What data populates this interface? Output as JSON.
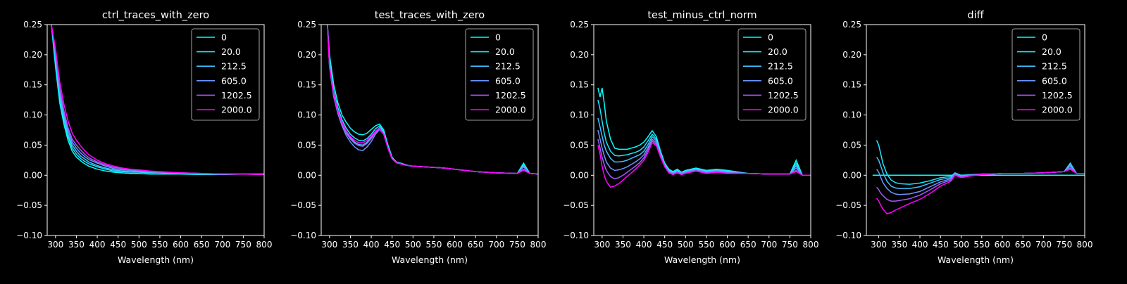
{
  "figure": {
    "background": "#000000",
    "foreground": "#ffffff"
  },
  "legend": {
    "entries": [
      "0",
      "20.0",
      "212.5",
      "605.0",
      "1202.5",
      "2000.0"
    ],
    "colors": [
      "#00ffff",
      "#1ae5ff",
      "#3fc0ff",
      "#6a95ff",
      "#a55aff",
      "#ff00ff"
    ],
    "placement": "top-right"
  },
  "chart_data": [
    {
      "type": "line",
      "title": "ctrl_traces_with_zero",
      "xlabel": "Wavelength (nm)",
      "ylabel": "",
      "xlim": [
        280,
        800
      ],
      "ylim": [
        -0.1,
        0.25
      ],
      "xticks": [
        "300",
        "350",
        "400",
        "450",
        "500",
        "550",
        "600",
        "650",
        "700",
        "750",
        "800"
      ],
      "yticks": [
        "−0.10",
        "−0.05",
        "0.00",
        "0.05",
        "0.10",
        "0.15",
        "0.20",
        "0.25"
      ],
      "grid": false,
      "legend": "top-right",
      "x": [
        290,
        300,
        310,
        320,
        330,
        340,
        350,
        360,
        370,
        380,
        400,
        420,
        440,
        460,
        480,
        500,
        525,
        550,
        575,
        600,
        650,
        700,
        750,
        800
      ],
      "series": [
        {
          "name": "0",
          "values": [
            0.25,
            0.18,
            0.12,
            0.085,
            0.058,
            0.04,
            0.03,
            0.024,
            0.019,
            0.015,
            0.01,
            0.007,
            0.005,
            0.004,
            0.003,
            0.003,
            0.002,
            0.002,
            0.002,
            0.002,
            0.001,
            0.001,
            0.002,
            0.002
          ]
        },
        {
          "name": "20.0",
          "values": [
            0.25,
            0.19,
            0.13,
            0.092,
            0.064,
            0.045,
            0.035,
            0.028,
            0.023,
            0.019,
            0.014,
            0.01,
            0.007,
            0.006,
            0.005,
            0.005,
            0.004,
            0.004,
            0.003,
            0.003,
            0.002,
            0.002,
            0.002,
            0.002
          ]
        },
        {
          "name": "212.5",
          "values": [
            0.25,
            0.195,
            0.135,
            0.097,
            0.068,
            0.05,
            0.04,
            0.032,
            0.027,
            0.022,
            0.016,
            0.012,
            0.009,
            0.007,
            0.006,
            0.006,
            0.005,
            0.004,
            0.004,
            0.003,
            0.002,
            0.002,
            0.002,
            0.002
          ]
        },
        {
          "name": "605.0",
          "values": [
            0.25,
            0.2,
            0.14,
            0.102,
            0.074,
            0.055,
            0.045,
            0.037,
            0.031,
            0.026,
            0.02,
            0.015,
            0.011,
            0.009,
            0.008,
            0.007,
            0.006,
            0.005,
            0.004,
            0.004,
            0.003,
            0.002,
            0.002,
            0.002
          ]
        },
        {
          "name": "1202.5",
          "values": [
            0.25,
            0.205,
            0.145,
            0.107,
            0.079,
            0.06,
            0.05,
            0.042,
            0.035,
            0.029,
            0.022,
            0.017,
            0.013,
            0.011,
            0.009,
            0.008,
            0.006,
            0.005,
            0.004,
            0.004,
            0.003,
            0.002,
            0.002,
            0.001
          ]
        },
        {
          "name": "2000.0",
          "values": [
            0.25,
            0.21,
            0.155,
            0.118,
            0.09,
            0.07,
            0.058,
            0.049,
            0.041,
            0.034,
            0.025,
            0.019,
            0.015,
            0.012,
            0.01,
            0.009,
            0.007,
            0.006,
            0.005,
            0.004,
            0.003,
            0.002,
            0.002,
            0.001
          ]
        }
      ]
    },
    {
      "type": "line",
      "title": "test_traces_with_zero",
      "xlabel": "Wavelength (nm)",
      "ylabel": "",
      "xlim": [
        280,
        800
      ],
      "ylim": [
        -0.1,
        0.25
      ],
      "xticks": [
        "300",
        "350",
        "400",
        "450",
        "500",
        "550",
        "600",
        "650",
        "700",
        "750",
        "800"
      ],
      "yticks": [
        "−0.10",
        "−0.05",
        "0.00",
        "0.05",
        "0.10",
        "0.15",
        "0.20",
        "0.25"
      ],
      "grid": false,
      "legend": "top-right",
      "x": [
        295,
        300,
        310,
        320,
        330,
        340,
        350,
        360,
        370,
        380,
        390,
        400,
        410,
        420,
        430,
        440,
        450,
        460,
        470,
        480,
        490,
        500,
        525,
        550,
        575,
        600,
        650,
        700,
        750,
        765,
        780,
        800
      ],
      "series": [
        {
          "name": "0",
          "values": [
            0.25,
            0.2,
            0.15,
            0.12,
            0.1,
            0.088,
            0.078,
            0.072,
            0.068,
            0.067,
            0.07,
            0.076,
            0.082,
            0.085,
            0.075,
            0.05,
            0.03,
            0.022,
            0.02,
            0.018,
            0.016,
            0.015,
            0.014,
            0.013,
            0.012,
            0.01,
            0.006,
            0.004,
            0.003,
            0.02,
            0.003,
            0.002
          ]
        },
        {
          "name": "20.0",
          "values": [
            0.25,
            0.19,
            0.14,
            0.112,
            0.092,
            0.078,
            0.068,
            0.062,
            0.058,
            0.057,
            0.061,
            0.068,
            0.077,
            0.082,
            0.072,
            0.047,
            0.029,
            0.022,
            0.02,
            0.018,
            0.016,
            0.015,
            0.014,
            0.013,
            0.012,
            0.01,
            0.006,
            0.004,
            0.003,
            0.018,
            0.003,
            0.002
          ]
        },
        {
          "name": "212.5",
          "values": [
            0.25,
            0.185,
            0.135,
            0.107,
            0.087,
            0.072,
            0.062,
            0.055,
            0.051,
            0.05,
            0.055,
            0.063,
            0.073,
            0.079,
            0.07,
            0.046,
            0.028,
            0.021,
            0.019,
            0.017,
            0.016,
            0.015,
            0.014,
            0.013,
            0.012,
            0.01,
            0.006,
            0.004,
            0.003,
            0.016,
            0.003,
            0.002
          ]
        },
        {
          "name": "605.0",
          "values": [
            0.25,
            0.18,
            0.13,
            0.102,
            0.082,
            0.066,
            0.055,
            0.047,
            0.042,
            0.041,
            0.047,
            0.056,
            0.068,
            0.076,
            0.068,
            0.045,
            0.027,
            0.021,
            0.019,
            0.017,
            0.016,
            0.015,
            0.014,
            0.013,
            0.012,
            0.01,
            0.006,
            0.004,
            0.003,
            0.014,
            0.003,
            0.002
          ]
        },
        {
          "name": "1202.5",
          "values": [
            0.25,
            0.18,
            0.13,
            0.104,
            0.085,
            0.07,
            0.06,
            0.053,
            0.049,
            0.048,
            0.053,
            0.061,
            0.071,
            0.077,
            0.068,
            0.045,
            0.027,
            0.021,
            0.019,
            0.017,
            0.016,
            0.015,
            0.014,
            0.013,
            0.012,
            0.01,
            0.006,
            0.004,
            0.003,
            0.01,
            0.003,
            0.002
          ]
        },
        {
          "name": "2000.0",
          "values": [
            0.25,
            0.18,
            0.135,
            0.107,
            0.088,
            0.074,
            0.064,
            0.058,
            0.054,
            0.054,
            0.058,
            0.065,
            0.073,
            0.078,
            0.068,
            0.045,
            0.027,
            0.021,
            0.019,
            0.017,
            0.016,
            0.015,
            0.014,
            0.013,
            0.012,
            0.01,
            0.006,
            0.004,
            0.003,
            0.008,
            0.003,
            0.002
          ]
        }
      ]
    },
    {
      "type": "line",
      "title": "test_minus_ctrl_norm",
      "xlabel": "Wavelength (nm)",
      "ylabel": "",
      "xlim": [
        280,
        800
      ],
      "ylim": [
        -0.1,
        0.25
      ],
      "xticks": [
        "300",
        "350",
        "400",
        "450",
        "500",
        "550",
        "600",
        "650",
        "700",
        "750",
        "800"
      ],
      "yticks": [
        "−0.10",
        "−0.05",
        "0.00",
        "0.05",
        "0.10",
        "0.15",
        "0.20",
        "0.25"
      ],
      "grid": false,
      "legend": "top-right",
      "x": [
        290,
        295,
        300,
        305,
        310,
        320,
        330,
        340,
        350,
        360,
        370,
        380,
        390,
        400,
        410,
        420,
        430,
        440,
        450,
        460,
        470,
        480,
        490,
        500,
        525,
        550,
        575,
        600,
        650,
        700,
        750,
        765,
        780,
        800
      ],
      "series": [
        {
          "name": "0",
          "values": [
            0.145,
            0.13,
            0.145,
            0.12,
            0.09,
            0.06,
            0.045,
            0.043,
            0.043,
            0.043,
            0.045,
            0.047,
            0.05,
            0.055,
            0.064,
            0.074,
            0.064,
            0.04,
            0.02,
            0.01,
            0.006,
            0.01,
            0.005,
            0.008,
            0.012,
            0.008,
            0.01,
            0.008,
            0.003,
            0.002,
            0.002,
            0.025,
            0.0,
            0.0
          ]
        },
        {
          "name": "20.0",
          "values": [
            0.125,
            0.11,
            0.09,
            0.07,
            0.055,
            0.04,
            0.033,
            0.032,
            0.033,
            0.034,
            0.036,
            0.038,
            0.041,
            0.047,
            0.057,
            0.068,
            0.06,
            0.038,
            0.018,
            0.008,
            0.005,
            0.008,
            0.004,
            0.007,
            0.011,
            0.007,
            0.009,
            0.007,
            0.003,
            0.002,
            0.002,
            0.02,
            0.0,
            0.0
          ]
        },
        {
          "name": "212.5",
          "values": [
            0.095,
            0.08,
            0.065,
            0.05,
            0.04,
            0.028,
            0.022,
            0.022,
            0.023,
            0.025,
            0.028,
            0.031,
            0.034,
            0.04,
            0.051,
            0.064,
            0.057,
            0.036,
            0.017,
            0.007,
            0.004,
            0.007,
            0.004,
            0.006,
            0.01,
            0.006,
            0.008,
            0.006,
            0.003,
            0.002,
            0.002,
            0.016,
            0.0,
            0.0
          ]
        },
        {
          "name": "605.0",
          "values": [
            0.075,
            0.06,
            0.045,
            0.033,
            0.022,
            0.012,
            0.008,
            0.009,
            0.011,
            0.014,
            0.018,
            0.022,
            0.027,
            0.034,
            0.046,
            0.06,
            0.054,
            0.034,
            0.016,
            0.006,
            0.003,
            0.006,
            0.003,
            0.005,
            0.009,
            0.005,
            0.007,
            0.005,
            0.003,
            0.002,
            0.002,
            0.012,
            0.0,
            0.0
          ]
        },
        {
          "name": "1202.5",
          "values": [
            0.06,
            0.045,
            0.03,
            0.018,
            0.008,
            -0.002,
            -0.006,
            -0.004,
            0.0,
            0.005,
            0.01,
            0.015,
            0.021,
            0.029,
            0.042,
            0.057,
            0.051,
            0.032,
            0.015,
            0.005,
            0.002,
            0.005,
            0.002,
            0.004,
            0.008,
            0.004,
            0.006,
            0.004,
            0.003,
            0.002,
            0.002,
            0.008,
            0.0,
            0.0
          ]
        },
        {
          "name": "2000.0",
          "values": [
            0.05,
            0.035,
            0.015,
            0.0,
            -0.01,
            -0.02,
            -0.018,
            -0.014,
            -0.008,
            -0.002,
            0.004,
            0.01,
            0.017,
            0.025,
            0.038,
            0.054,
            0.049,
            0.03,
            0.014,
            0.004,
            0.001,
            0.004,
            0.001,
            0.003,
            0.007,
            0.003,
            0.005,
            0.003,
            0.003,
            0.002,
            0.002,
            0.006,
            0.0,
            0.0
          ]
        }
      ]
    },
    {
      "type": "line",
      "title": "diff",
      "xlabel": "Wavelength (nm)",
      "ylabel": "",
      "xlim": [
        270,
        800
      ],
      "ylim": [
        -0.1,
        0.25
      ],
      "xticks": [
        "300",
        "350",
        "400",
        "450",
        "500",
        "550",
        "600",
        "650",
        "700",
        "750",
        "800"
      ],
      "yticks": [
        "−0.10",
        "−0.05",
        "0.00",
        "0.05",
        "0.10",
        "0.15",
        "0.20",
        "0.25"
      ],
      "grid": false,
      "legend": "top-right",
      "x": [
        285,
        295,
        300,
        305,
        310,
        320,
        330,
        340,
        350,
        375,
        400,
        425,
        450,
        475,
        485,
        500,
        525,
        550,
        575,
        600,
        650,
        700,
        750,
        765,
        780,
        800
      ],
      "series": [
        {
          "name": "0",
          "values": [
            0.0,
            0.0,
            0.0,
            0.0,
            0.0,
            0.0,
            0.0,
            0.0,
            0.0,
            0.0,
            0.0,
            0.0,
            0.0,
            0.0,
            0.0,
            0.0,
            0.0,
            0.0,
            0.0,
            0.0,
            0.0,
            0.0,
            0.0,
            0.0,
            0.0,
            0.0
          ]
        },
        {
          "name": "20.0",
          "values": [
            null,
            0.058,
            0.05,
            0.035,
            0.02,
            0.002,
            -0.008,
            -0.012,
            -0.014,
            -0.015,
            -0.013,
            -0.009,
            -0.004,
            -0.002,
            0.004,
            0.0,
            0.001,
            0.002,
            0.002,
            0.003,
            0.003,
            0.004,
            0.006,
            0.02,
            0.003,
            0.003
          ]
        },
        {
          "name": "212.5",
          "values": [
            null,
            0.03,
            0.025,
            0.015,
            0.005,
            -0.01,
            -0.018,
            -0.021,
            -0.022,
            -0.022,
            -0.019,
            -0.013,
            -0.007,
            -0.004,
            0.003,
            -0.001,
            0.001,
            0.002,
            0.002,
            0.003,
            0.003,
            0.004,
            0.006,
            0.018,
            0.003,
            0.003
          ]
        },
        {
          "name": "605.0",
          "values": [
            null,
            0.01,
            0.005,
            -0.004,
            -0.012,
            -0.022,
            -0.028,
            -0.031,
            -0.032,
            -0.031,
            -0.027,
            -0.019,
            -0.011,
            -0.006,
            0.002,
            -0.002,
            0.0,
            0.002,
            0.002,
            0.003,
            0.003,
            0.004,
            0.006,
            0.015,
            0.003,
            0.003
          ]
        },
        {
          "name": "1202.5",
          "values": [
            null,
            -0.02,
            -0.024,
            -0.03,
            -0.034,
            -0.04,
            -0.043,
            -0.043,
            -0.042,
            -0.039,
            -0.033,
            -0.024,
            -0.014,
            -0.008,
            0.001,
            -0.003,
            0.0,
            0.001,
            0.002,
            0.003,
            0.003,
            0.004,
            0.006,
            0.012,
            0.003,
            0.003
          ]
        },
        {
          "name": "2000.0",
          "values": [
            null,
            -0.038,
            -0.043,
            -0.05,
            -0.056,
            -0.064,
            -0.062,
            -0.058,
            -0.055,
            -0.047,
            -0.04,
            -0.03,
            -0.018,
            -0.01,
            0.0,
            -0.004,
            -0.001,
            0.001,
            0.002,
            0.003,
            0.003,
            0.004,
            0.006,
            0.01,
            0.003,
            0.003
          ]
        }
      ]
    }
  ]
}
